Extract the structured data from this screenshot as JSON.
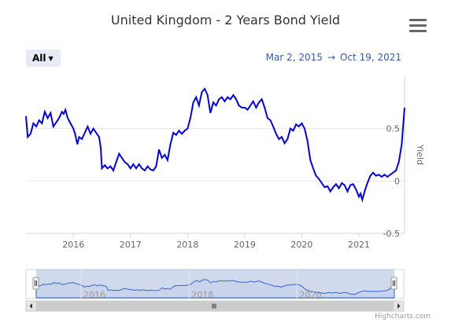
{
  "chart_data": {
    "type": "line",
    "title": "United Kingdom - 2 Years Bond Yield",
    "range_selector": {
      "selected": "All"
    },
    "date_range": {
      "from": "Mar 2, 2015",
      "arrow": "→",
      "to": "Oct 19, 2021"
    },
    "ylabel": "Yield",
    "ylim": [
      -0.5,
      1.0
    ],
    "y_ticks": [
      {
        "value": 0.5,
        "label": "0.5"
      },
      {
        "value": 0,
        "label": "0"
      },
      {
        "value": -0.5,
        "label": "-0.5"
      }
    ],
    "x_ticks": [
      {
        "value": 2016.0,
        "label": "2016"
      },
      {
        "value": 2017.0,
        "label": "2017"
      },
      {
        "value": 2018.0,
        "label": "2018"
      },
      {
        "value": 2019.0,
        "label": "2019"
      },
      {
        "value": 2020.0,
        "label": "2020"
      },
      {
        "value": 2021.0,
        "label": "2021"
      }
    ],
    "navigator_ticks": [
      {
        "value": 2016.0,
        "label": "2016"
      },
      {
        "value": 2018.0,
        "label": "2018"
      },
      {
        "value": 2020.0,
        "label": "2020"
      }
    ],
    "series": [
      {
        "color": "#0000ee",
        "points": [
          [
            2015.17,
            0.62
          ],
          [
            2015.2,
            0.42
          ],
          [
            2015.25,
            0.45
          ],
          [
            2015.3,
            0.55
          ],
          [
            2015.35,
            0.52
          ],
          [
            2015.4,
            0.58
          ],
          [
            2015.45,
            0.55
          ],
          [
            2015.5,
            0.66
          ],
          [
            2015.55,
            0.6
          ],
          [
            2015.6,
            0.65
          ],
          [
            2015.65,
            0.52
          ],
          [
            2015.7,
            0.56
          ],
          [
            2015.75,
            0.6
          ],
          [
            2015.8,
            0.66
          ],
          [
            2015.83,
            0.64
          ],
          [
            2015.86,
            0.68
          ],
          [
            2015.9,
            0.6
          ],
          [
            2015.95,
            0.55
          ],
          [
            2016.0,
            0.5
          ],
          [
            2016.03,
            0.45
          ],
          [
            2016.07,
            0.35
          ],
          [
            2016.1,
            0.42
          ],
          [
            2016.15,
            0.4
          ],
          [
            2016.2,
            0.46
          ],
          [
            2016.25,
            0.52
          ],
          [
            2016.3,
            0.45
          ],
          [
            2016.35,
            0.5
          ],
          [
            2016.4,
            0.46
          ],
          [
            2016.45,
            0.42
          ],
          [
            2016.48,
            0.32
          ],
          [
            2016.5,
            0.12
          ],
          [
            2016.55,
            0.15
          ],
          [
            2016.6,
            0.12
          ],
          [
            2016.65,
            0.14
          ],
          [
            2016.7,
            0.1
          ],
          [
            2016.75,
            0.18
          ],
          [
            2016.8,
            0.26
          ],
          [
            2016.85,
            0.22
          ],
          [
            2016.9,
            0.18
          ],
          [
            2016.95,
            0.16
          ],
          [
            2017.0,
            0.12
          ],
          [
            2017.05,
            0.16
          ],
          [
            2017.1,
            0.12
          ],
          [
            2017.15,
            0.16
          ],
          [
            2017.2,
            0.12
          ],
          [
            2017.25,
            0.1
          ],
          [
            2017.3,
            0.14
          ],
          [
            2017.35,
            0.11
          ],
          [
            2017.4,
            0.1
          ],
          [
            2017.45,
            0.14
          ],
          [
            2017.5,
            0.3
          ],
          [
            2017.55,
            0.22
          ],
          [
            2017.6,
            0.25
          ],
          [
            2017.65,
            0.2
          ],
          [
            2017.7,
            0.35
          ],
          [
            2017.75,
            0.46
          ],
          [
            2017.8,
            0.44
          ],
          [
            2017.85,
            0.48
          ],
          [
            2017.9,
            0.45
          ],
          [
            2017.95,
            0.48
          ],
          [
            2018.0,
            0.5
          ],
          [
            2018.05,
            0.6
          ],
          [
            2018.1,
            0.75
          ],
          [
            2018.15,
            0.8
          ],
          [
            2018.2,
            0.72
          ],
          [
            2018.25,
            0.85
          ],
          [
            2018.3,
            0.88
          ],
          [
            2018.35,
            0.82
          ],
          [
            2018.4,
            0.65
          ],
          [
            2018.45,
            0.75
          ],
          [
            2018.5,
            0.72
          ],
          [
            2018.55,
            0.78
          ],
          [
            2018.6,
            0.8
          ],
          [
            2018.65,
            0.76
          ],
          [
            2018.7,
            0.8
          ],
          [
            2018.75,
            0.78
          ],
          [
            2018.8,
            0.82
          ],
          [
            2018.85,
            0.78
          ],
          [
            2018.9,
            0.72
          ],
          [
            2018.95,
            0.7
          ],
          [
            2019.0,
            0.7
          ],
          [
            2019.05,
            0.68
          ],
          [
            2019.1,
            0.72
          ],
          [
            2019.15,
            0.76
          ],
          [
            2019.2,
            0.7
          ],
          [
            2019.25,
            0.75
          ],
          [
            2019.3,
            0.78
          ],
          [
            2019.35,
            0.7
          ],
          [
            2019.4,
            0.6
          ],
          [
            2019.45,
            0.58
          ],
          [
            2019.5,
            0.52
          ],
          [
            2019.55,
            0.45
          ],
          [
            2019.6,
            0.4
          ],
          [
            2019.65,
            0.42
          ],
          [
            2019.7,
            0.36
          ],
          [
            2019.75,
            0.4
          ],
          [
            2019.8,
            0.5
          ],
          [
            2019.85,
            0.48
          ],
          [
            2019.9,
            0.54
          ],
          [
            2019.95,
            0.52
          ],
          [
            2020.0,
            0.55
          ],
          [
            2020.05,
            0.5
          ],
          [
            2020.1,
            0.38
          ],
          [
            2020.15,
            0.2
          ],
          [
            2020.2,
            0.12
          ],
          [
            2020.25,
            0.05
          ],
          [
            2020.3,
            0.02
          ],
          [
            2020.35,
            -0.02
          ],
          [
            2020.4,
            -0.06
          ],
          [
            2020.45,
            -0.05
          ],
          [
            2020.5,
            -0.1
          ],
          [
            2020.55,
            -0.06
          ],
          [
            2020.6,
            -0.03
          ],
          [
            2020.65,
            -0.07
          ],
          [
            2020.7,
            -0.02
          ],
          [
            2020.75,
            -0.04
          ],
          [
            2020.8,
            -0.1
          ],
          [
            2020.85,
            -0.04
          ],
          [
            2020.9,
            -0.03
          ],
          [
            2020.95,
            -0.08
          ],
          [
            2021.0,
            -0.15
          ],
          [
            2021.03,
            -0.12
          ],
          [
            2021.06,
            -0.18
          ],
          [
            2021.1,
            -0.1
          ],
          [
            2021.15,
            -0.02
          ],
          [
            2021.2,
            0.05
          ],
          [
            2021.25,
            0.08
          ],
          [
            2021.3,
            0.05
          ],
          [
            2021.35,
            0.06
          ],
          [
            2021.4,
            0.04
          ],
          [
            2021.45,
            0.06
          ],
          [
            2021.5,
            0.04
          ],
          [
            2021.55,
            0.06
          ],
          [
            2021.6,
            0.08
          ],
          [
            2021.65,
            0.1
          ],
          [
            2021.7,
            0.18
          ],
          [
            2021.75,
            0.35
          ],
          [
            2021.8,
            0.7
          ]
        ]
      }
    ],
    "credits": "Highcharts.com"
  }
}
